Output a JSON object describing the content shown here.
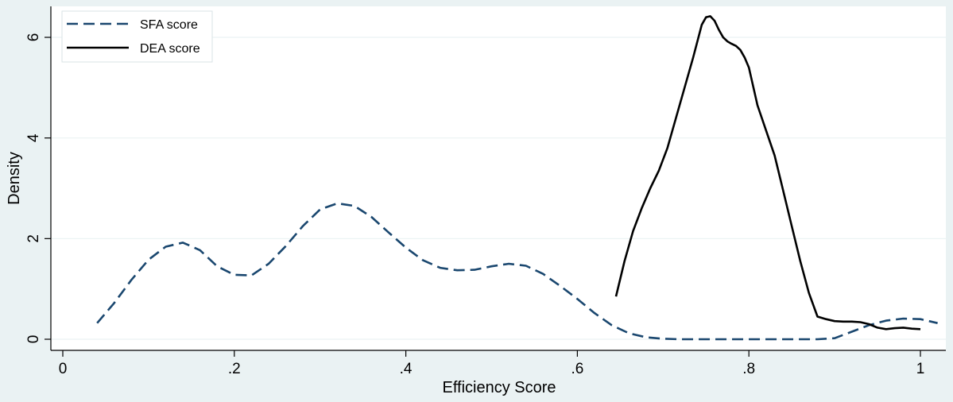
{
  "chart_data": {
    "type": "line",
    "title": "",
    "xlabel": "Efficiency Score",
    "ylabel": "Density",
    "xlim": [
      0,
      1.03
    ],
    "ylim": [
      0,
      6.6
    ],
    "xticks": [
      {
        "value": 0,
        "label": "0"
      },
      {
        "value": 0.2,
        "label": ".2"
      },
      {
        "value": 0.4,
        "label": ".4"
      },
      {
        "value": 0.6,
        "label": ".6"
      },
      {
        "value": 0.8,
        "label": ".8"
      },
      {
        "value": 1.0,
        "label": "1"
      }
    ],
    "yticks": [
      {
        "value": 0,
        "label": "0"
      },
      {
        "value": 2,
        "label": "2"
      },
      {
        "value": 4,
        "label": "4"
      },
      {
        "value": 6,
        "label": "6"
      }
    ],
    "grid": true,
    "legend_position": "top-left",
    "series": [
      {
        "name": "SFA score",
        "color": "#1a476f",
        "dash": "dashed",
        "x": [
          0.04,
          0.06,
          0.08,
          0.1,
          0.12,
          0.14,
          0.16,
          0.18,
          0.2,
          0.22,
          0.24,
          0.26,
          0.28,
          0.3,
          0.32,
          0.34,
          0.36,
          0.38,
          0.4,
          0.42,
          0.44,
          0.46,
          0.48,
          0.5,
          0.52,
          0.54,
          0.56,
          0.58,
          0.6,
          0.62,
          0.64,
          0.66,
          0.68,
          0.7,
          0.72,
          0.74,
          0.76,
          0.78,
          0.8,
          0.82,
          0.84,
          0.86,
          0.88,
          0.9,
          0.92,
          0.94,
          0.96,
          0.98,
          1.0,
          1.02
        ],
        "y": [
          0.32,
          0.72,
          1.18,
          1.58,
          1.84,
          1.92,
          1.77,
          1.45,
          1.28,
          1.27,
          1.5,
          1.85,
          2.25,
          2.58,
          2.7,
          2.65,
          2.43,
          2.12,
          1.82,
          1.57,
          1.42,
          1.37,
          1.38,
          1.45,
          1.5,
          1.46,
          1.3,
          1.06,
          0.8,
          0.52,
          0.28,
          0.12,
          0.04,
          0.01,
          0.0,
          0.0,
          0.0,
          0.0,
          0.0,
          0.0,
          0.0,
          0.0,
          0.0,
          0.02,
          0.15,
          0.28,
          0.37,
          0.41,
          0.4,
          0.32
        ]
      },
      {
        "name": "DEA score",
        "color": "#000000",
        "dash": "solid",
        "x": [
          0.645,
          0.655,
          0.665,
          0.675,
          0.685,
          0.695,
          0.705,
          0.715,
          0.725,
          0.735,
          0.745,
          0.75,
          0.755,
          0.76,
          0.765,
          0.77,
          0.775,
          0.78,
          0.785,
          0.79,
          0.795,
          0.8,
          0.81,
          0.82,
          0.83,
          0.84,
          0.85,
          0.86,
          0.87,
          0.88,
          0.89,
          0.9,
          0.91,
          0.92,
          0.93,
          0.94,
          0.95,
          0.96,
          0.97,
          0.98,
          0.99,
          1.0
        ],
        "y": [
          0.85,
          1.55,
          2.15,
          2.6,
          3.0,
          3.35,
          3.8,
          4.4,
          5.0,
          5.6,
          6.25,
          6.4,
          6.42,
          6.33,
          6.15,
          6.0,
          5.92,
          5.87,
          5.83,
          5.75,
          5.6,
          5.4,
          4.65,
          4.15,
          3.65,
          2.95,
          2.25,
          1.55,
          0.92,
          0.45,
          0.4,
          0.36,
          0.35,
          0.35,
          0.34,
          0.3,
          0.23,
          0.2,
          0.22,
          0.23,
          0.21,
          0.2
        ]
      }
    ]
  }
}
